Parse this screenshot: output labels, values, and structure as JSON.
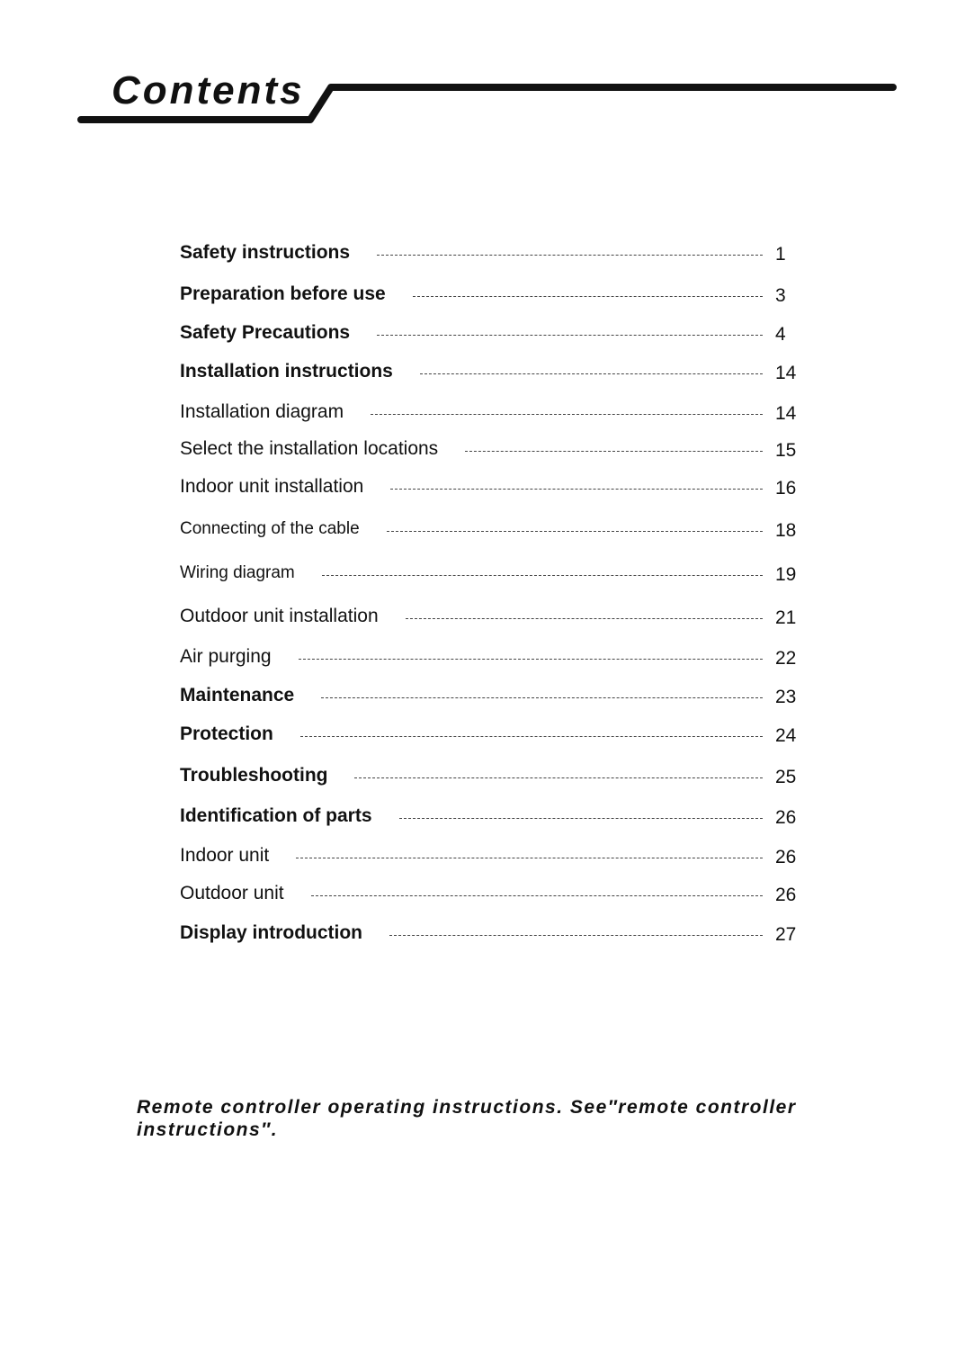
{
  "header": {
    "title": "Contents"
  },
  "toc": [
    {
      "label": "Safety instructions",
      "page": "1",
      "style": "b"
    },
    {
      "label": "Preparation before use",
      "page": "3",
      "style": "b"
    },
    {
      "label": "Safety Precautions",
      "page": "4",
      "style": "b"
    },
    {
      "label": "Installation instructions",
      "page": "14",
      "style": "b"
    },
    {
      "label": "Installation diagram",
      "page": "14",
      "style": ""
    },
    {
      "label": "Select the installation locations",
      "page": "15",
      "style": ""
    },
    {
      "label": "Indoor unit installation",
      "page": "16",
      "style": ""
    },
    {
      "label": "Connecting of the cable",
      "page": "18",
      "style": "s"
    },
    {
      "label": "Wiring diagram",
      "page": "19",
      "style": "s"
    },
    {
      "label": "Outdoor unit installation",
      "page": "21",
      "style": ""
    },
    {
      "label": "Air purging",
      "page": "22",
      "style": ""
    },
    {
      "label": "Maintenance",
      "page": "23",
      "style": "b"
    },
    {
      "label": "Protection",
      "page": "24",
      "style": "b"
    },
    {
      "label": "Troubleshooting",
      "page": "25",
      "style": "b"
    },
    {
      "label": "Identification of parts",
      "page": "26",
      "style": "b"
    },
    {
      "label": "Indoor unit",
      "page": "26",
      "style": ""
    },
    {
      "label": "Outdoor unit",
      "page": "26",
      "style": ""
    },
    {
      "label": "Display introduction",
      "page": "27",
      "style": "b"
    }
  ],
  "footer_note": "Remote controller operating instructions. See″remote controller instructions″."
}
